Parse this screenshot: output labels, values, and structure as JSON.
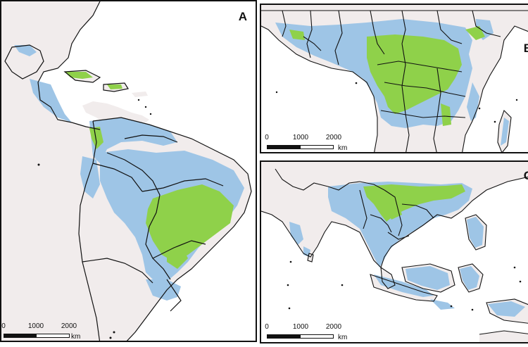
{
  "colors": {
    "land": "#f1ecec",
    "ocean": "#ffffff",
    "forest_blue": "#9ec5e6",
    "forest_green": "#8fd14a",
    "border": "#111111"
  },
  "panels": {
    "a": {
      "label": "A"
    },
    "b": {
      "label": "B"
    },
    "c": {
      "label": "C"
    }
  },
  "scalebar": {
    "ticks": [
      "0",
      "1000",
      "2000"
    ],
    "unit": "km"
  }
}
